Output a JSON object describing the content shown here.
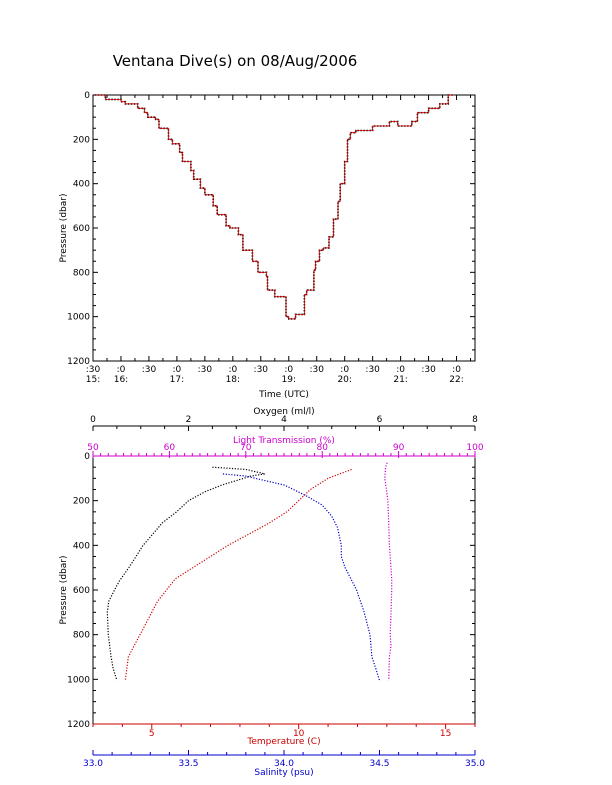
{
  "chart_data": [
    {
      "type": "line",
      "title": "Ventana Dive(s) on 08/Aug/2006",
      "xlabel": "Time (UTC)",
      "ylabel": "Pressure (dbar)",
      "ylim": [
        1200,
        0
      ],
      "yticks": [
        "0",
        "200",
        "400",
        "600",
        "800",
        "1000",
        "1200"
      ],
      "xlim_hours": [
        15.5,
        22.33
      ],
      "xticks": [
        {
          "t": 15.5,
          "top": ":30",
          "bottom": "15:"
        },
        {
          "t": 16.0,
          "top": ":0",
          "bottom": "16:"
        },
        {
          "t": 16.5,
          "top": ":30",
          "bottom": ""
        },
        {
          "t": 17.0,
          "top": ":0",
          "bottom": "17:"
        },
        {
          "t": 17.5,
          "top": ":30",
          "bottom": ""
        },
        {
          "t": 18.0,
          "top": ":0",
          "bottom": "18:"
        },
        {
          "t": 18.5,
          "top": ":30",
          "bottom": ""
        },
        {
          "t": 19.0,
          "top": ":0",
          "bottom": "19:"
        },
        {
          "t": 19.5,
          "top": ":30",
          "bottom": ""
        },
        {
          "t": 20.0,
          "top": ":0",
          "bottom": "20:"
        },
        {
          "t": 20.5,
          "top": ":30",
          "bottom": ""
        },
        {
          "t": 21.0,
          "top": ":0",
          "bottom": "21:"
        },
        {
          "t": 21.5,
          "top": ":30",
          "bottom": ""
        },
        {
          "t": 22.0,
          "top": ":0",
          "bottom": "22:"
        }
      ],
      "series": [
        {
          "color": "#cc0000",
          "x_hours": [
            15.53,
            15.65,
            15.72,
            16.0,
            16.08,
            16.25,
            16.3,
            16.42,
            16.48,
            16.62,
            16.68,
            16.85,
            16.92,
            17.05,
            17.1,
            17.25,
            17.3,
            17.42,
            17.5,
            17.65,
            17.72,
            17.88,
            17.95,
            18.1,
            18.18,
            18.35,
            18.45,
            18.6,
            18.62,
            18.75,
            18.8,
            18.95,
            19.0,
            19.1,
            19.12,
            19.28,
            19.32,
            19.45,
            19.48,
            19.55,
            19.62,
            19.72,
            19.8,
            19.88,
            19.92,
            20.0,
            20.05,
            20.1,
            20.2,
            20.5,
            20.8,
            20.95,
            21.05,
            21.2,
            21.3,
            21.5,
            21.7,
            21.85,
            21.95
          ],
          "y": [
            0,
            0,
            20,
            30,
            40,
            40,
            60,
            80,
            100,
            110,
            150,
            200,
            220,
            260,
            300,
            340,
            380,
            420,
            450,
            500,
            540,
            590,
            600,
            630,
            700,
            750,
            800,
            820,
            880,
            910,
            910,
            1000,
            1010,
            1010,
            990,
            900,
            880,
            790,
            750,
            700,
            690,
            640,
            560,
            480,
            400,
            300,
            200,
            170,
            160,
            140,
            120,
            140,
            140,
            120,
            80,
            60,
            40,
            0,
            0
          ]
        }
      ]
    },
    {
      "type": "line",
      "ylabel": "Pressure (dbar)",
      "ylim": [
        1200,
        0
      ],
      "yticks": [
        "0",
        "200",
        "400",
        "600",
        "800",
        "1000",
        "1200"
      ],
      "axes": [
        {
          "label": "Oxygen (ml/l)",
          "position": "top-outer",
          "color": "#000000",
          "min": 0,
          "max": 8,
          "ticks": [
            "0",
            "2",
            "4",
            "6",
            "8"
          ]
        },
        {
          "label": "Light Transmission (%)",
          "position": "top-inner",
          "color": "#cc00cc",
          "min": 50,
          "max": 100,
          "ticks": [
            "50",
            "60",
            "70",
            "80",
            "90",
            "100"
          ]
        },
        {
          "label": "Temperature (C)",
          "position": "bottom-inner",
          "color": "#cc0000",
          "min": 3,
          "max": 16,
          "ticks": [
            "5",
            "10",
            "15"
          ],
          "tick_values": [
            5,
            10,
            15
          ]
        },
        {
          "label": "Salinity (psu)",
          "position": "bottom-outer",
          "color": "#0000cc",
          "min": 33.0,
          "max": 35.0,
          "ticks": [
            "33.0",
            "33.5",
            "34.0",
            "34.5",
            "35.0"
          ]
        }
      ],
      "series": [
        {
          "variable": "oxygen",
          "color": "#000000",
          "x": [
            2.5,
            3.2,
            3.6,
            3.3,
            3.0,
            2.7,
            2.35,
            2.0,
            1.75,
            1.45,
            1.25,
            1.05,
            0.9,
            0.75,
            0.55,
            0.45,
            0.33,
            0.3,
            0.32,
            0.38,
            0.42,
            0.5
          ],
          "y": [
            50,
            60,
            80,
            90,
            110,
            130,
            160,
            200,
            250,
            300,
            350,
            400,
            450,
            500,
            560,
            600,
            650,
            700,
            800,
            900,
            950,
            1005
          ]
        },
        {
          "variable": "temperature",
          "color": "#cc0000",
          "x": [
            11.8,
            11.0,
            10.4,
            10.0,
            9.6,
            9.0,
            8.3,
            7.6,
            7.0,
            6.4,
            5.8,
            5.5,
            5.2,
            5.0,
            4.8,
            4.6,
            4.4,
            4.2,
            4.1
          ],
          "y": [
            60,
            100,
            150,
            200,
            250,
            300,
            350,
            400,
            450,
            500,
            550,
            600,
            650,
            700,
            750,
            800,
            850,
            900,
            1005
          ]
        },
        {
          "variable": "salinity",
          "color": "#0000cc",
          "x": [
            33.68,
            33.8,
            33.9,
            34.0,
            34.05,
            34.12,
            34.2,
            34.25,
            34.28,
            34.3,
            34.3,
            34.32,
            34.35,
            34.38,
            34.42,
            34.45,
            34.46,
            34.48,
            34.5
          ],
          "y": [
            80,
            90,
            110,
            130,
            150,
            180,
            220,
            270,
            320,
            400,
            450,
            500,
            550,
            600,
            700,
            800,
            900,
            950,
            1005
          ]
        },
        {
          "variable": "light_transmission",
          "color": "#cc00cc",
          "x": [
            88.5,
            88.3,
            88.2,
            88.4,
            88.6,
            88.7,
            88.8,
            89.0,
            89.1,
            89.1,
            89.0,
            88.9,
            89.0,
            88.8,
            88.7
          ],
          "y": [
            30,
            50,
            100,
            150,
            200,
            300,
            400,
            500,
            550,
            600,
            700,
            800,
            850,
            900,
            1005
          ]
        }
      ]
    }
  ]
}
